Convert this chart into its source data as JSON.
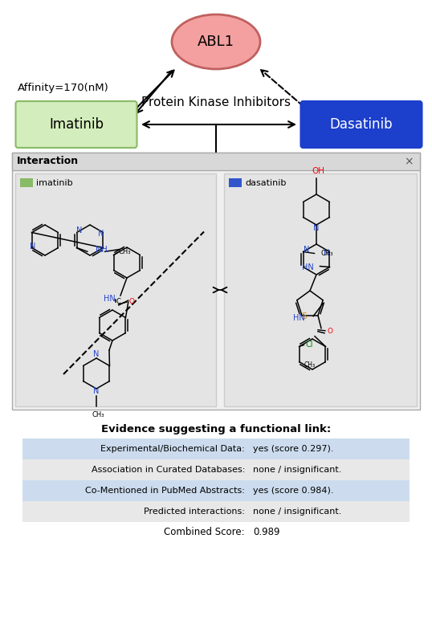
{
  "bg_color": "#ffffff",
  "abl1_label": "ABL1",
  "abl1_fill": "#f4a0a0",
  "abl1_edge": "#c06060",
  "imatinib_label": "Imatinib",
  "imatinib_fill": "#d4edbc",
  "imatinib_edge": "#88bb66",
  "dasatinib_label": "Dasatinib",
  "dasatinib_fill": "#1c3fcc",
  "dasatinib_edge": "#1c3fcc",
  "affinity_text": "Affinity=170(nM)",
  "pki_text": "Protein Kinase Inhibitors",
  "interaction_header": "Interaction",
  "imatinib_legend_color": "#88bb66",
  "dasatinib_legend_color": "#3355cc",
  "evidence_title": "Evidence suggesting a functional link:",
  "evidence_rows": [
    {
      "label": "Experimental/Biochemical Data:",
      "value": "yes (score 0.297).",
      "highlighted": true
    },
    {
      "label": "Association in Curated Databases:",
      "value": "none / insignificant.",
      "highlighted": false
    },
    {
      "label": "Co-Mentioned in PubMed Abstracts:",
      "value": "yes (score 0.984).",
      "highlighted": true
    },
    {
      "label": "Predicted interactions:",
      "value": "none / insignificant.",
      "highlighted": false
    },
    {
      "label": "Combined Score:",
      "value": "0.989",
      "highlighted": false,
      "center": true
    }
  ],
  "row_bg_highlighted": "#ccdcee",
  "row_bg_normal": "#e8e8e8"
}
